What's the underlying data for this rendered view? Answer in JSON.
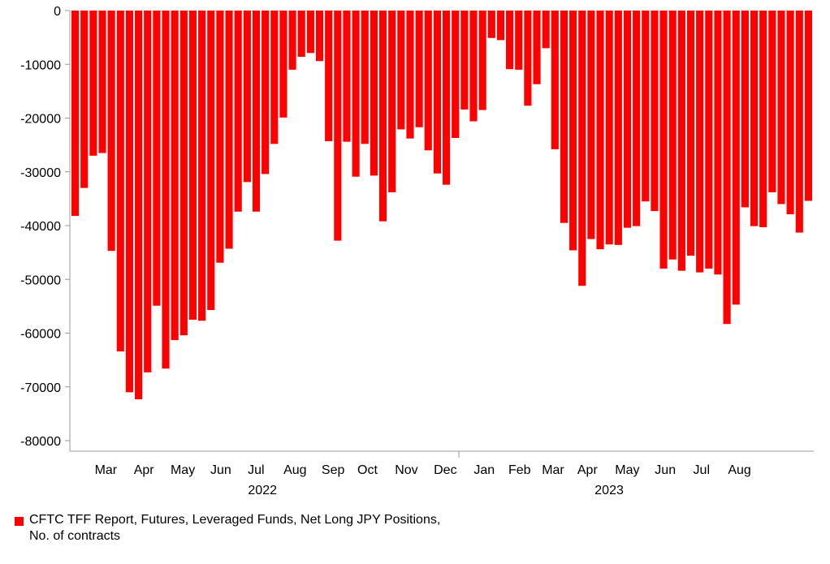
{
  "chart_data": {
    "type": "bar",
    "color": "#ff0000",
    "ylim": [
      -80000,
      0
    ],
    "yticks": [
      "0",
      "-10000",
      "-20000",
      "-30000",
      "-40000",
      "-50000",
      "-60000",
      "-70000",
      "-80000"
    ],
    "ytick_values": [
      0,
      -10000,
      -20000,
      -30000,
      -40000,
      -50000,
      -60000,
      -70000,
      -80000
    ],
    "month_labels": [
      {
        "label": "Mar",
        "x": 3.8
      },
      {
        "label": "Apr",
        "x": 8.0
      },
      {
        "label": "May",
        "x": 12.3
      },
      {
        "label": "Jun",
        "x": 16.5
      },
      {
        "label": "Jul",
        "x": 20.4
      },
      {
        "label": "Aug",
        "x": 24.7
      },
      {
        "label": "Sep",
        "x": 28.9
      },
      {
        "label": "Oct",
        "x": 32.7
      },
      {
        "label": "Nov",
        "x": 37.0
      },
      {
        "label": "Dec",
        "x": 41.3
      },
      {
        "label": "Jan",
        "x": 45.6
      },
      {
        "label": "Feb",
        "x": 49.5
      },
      {
        "label": "Mar",
        "x": 53.2
      },
      {
        "label": "Apr",
        "x": 57.0
      },
      {
        "label": "May",
        "x": 61.4
      },
      {
        "label": "Jun",
        "x": 65.6
      },
      {
        "label": "Jul",
        "x": 69.6
      },
      {
        "label": "Aug",
        "x": 73.8
      }
    ],
    "year_labels": [
      {
        "label": "2022",
        "x": 21.1
      },
      {
        "label": "2023",
        "x": 59.4
      }
    ],
    "year_divider_x": 42.8,
    "values": [
      -38200,
      -33000,
      -27000,
      -26500,
      -44700,
      -63400,
      -71000,
      -72300,
      -67300,
      -54900,
      -66600,
      -61300,
      -60400,
      -57500,
      -57700,
      -55700,
      -46900,
      -44300,
      -37400,
      -31900,
      -37400,
      -30400,
      -24800,
      -19900,
      -11000,
      -8600,
      -7900,
      -9400,
      -24300,
      -42800,
      -24400,
      -30900,
      -24800,
      -30700,
      -39200,
      -33800,
      -22100,
      -23800,
      -21700,
      -26000,
      -30300,
      -32400,
      -23700,
      -18400,
      -20600,
      -18500,
      -5100,
      -5500,
      -10900,
      -11000,
      -17700,
      -13700,
      -7000,
      -25800,
      -39500,
      -44600,
      -51200,
      -42500,
      -44400,
      -43500,
      -43600,
      -40400,
      -40100,
      -35500,
      -37300,
      -48000,
      -46300,
      -48400,
      -45600,
      -48700,
      -48000,
      -49100,
      -58300,
      -54700,
      -36600,
      -40100,
      -40300,
      -33800,
      -36000,
      -37900,
      -41300,
      -35400
    ]
  },
  "legend": {
    "text": "CFTC TFF Report, Futures, Leveraged Funds, Net Long JPY Positions, No. of contracts"
  }
}
